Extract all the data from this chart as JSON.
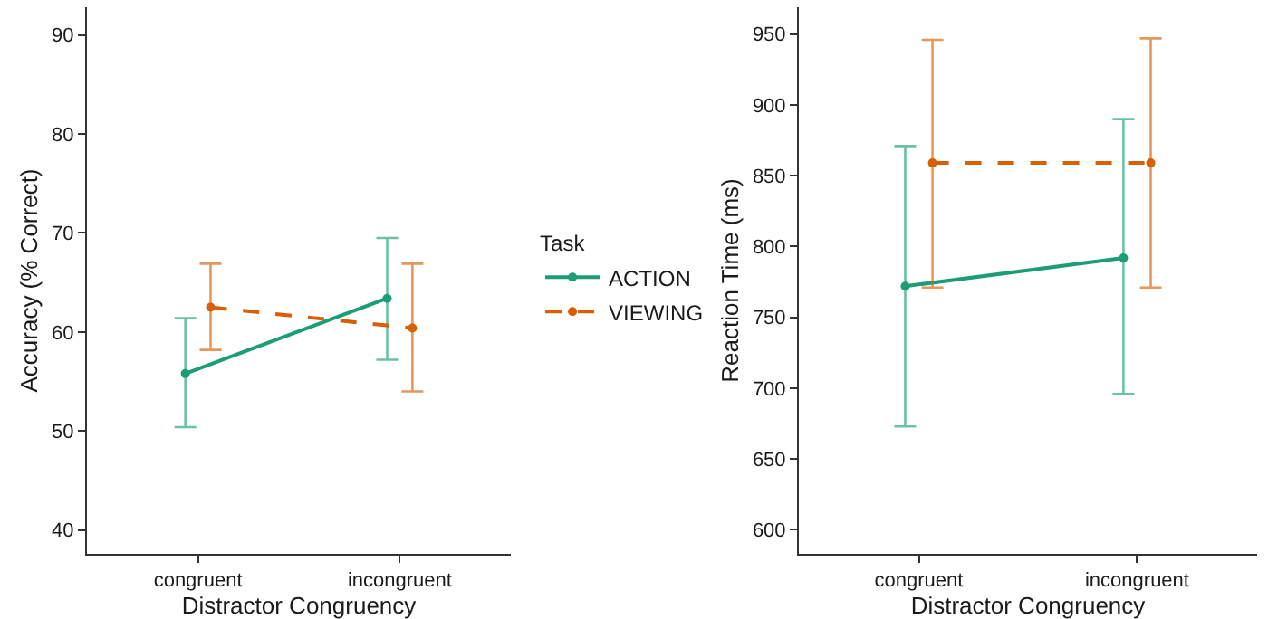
{
  "chart_data": [
    {
      "type": "line",
      "xlabel": "Distractor Congruency",
      "ylabel": "Accuracy (% Correct)",
      "categories": [
        "congruent",
        "incongruent"
      ],
      "ylim": [
        37.6,
        92.8
      ],
      "yticks": [
        40,
        50,
        60,
        70,
        80,
        90
      ],
      "grid": false,
      "legend": "right",
      "legend_title": "Task",
      "marker": "circle",
      "series": [
        {
          "name": "ACTION",
          "color": "#1b9e77",
          "line_style": "solid",
          "values": [
            55.8,
            63.4
          ],
          "errors": [
            [
              50.4,
              61.4
            ],
            [
              57.2,
              69.5
            ]
          ]
        },
        {
          "name": "VIEWING",
          "color": "#d95f02",
          "line_style": "dashed",
          "values": [
            62.5,
            60.4
          ],
          "errors": [
            [
              58.2,
              66.9
            ],
            [
              54.0,
              66.9
            ]
          ]
        }
      ]
    },
    {
      "type": "line",
      "xlabel": "Distractor Congruency",
      "ylabel": "Reaction Time (ms)",
      "categories": [
        "congruent",
        "incongruent"
      ],
      "ylim": [
        583,
        969
      ],
      "yticks": [
        600,
        650,
        700,
        750,
        800,
        850,
        900,
        950
      ],
      "grid": false,
      "legend": false,
      "marker": "circle",
      "series": [
        {
          "color": "#1b9e77",
          "line_style": "solid",
          "values": [
            772,
            792
          ],
          "errors": [
            [
              673,
              871
            ],
            [
              696,
              890
            ]
          ]
        },
        {
          "color": "#d95f02",
          "line_style": "dashed",
          "values": [
            859,
            859
          ],
          "errors": [
            [
              771,
              946
            ],
            [
              771,
              947
            ]
          ]
        }
      ]
    }
  ]
}
